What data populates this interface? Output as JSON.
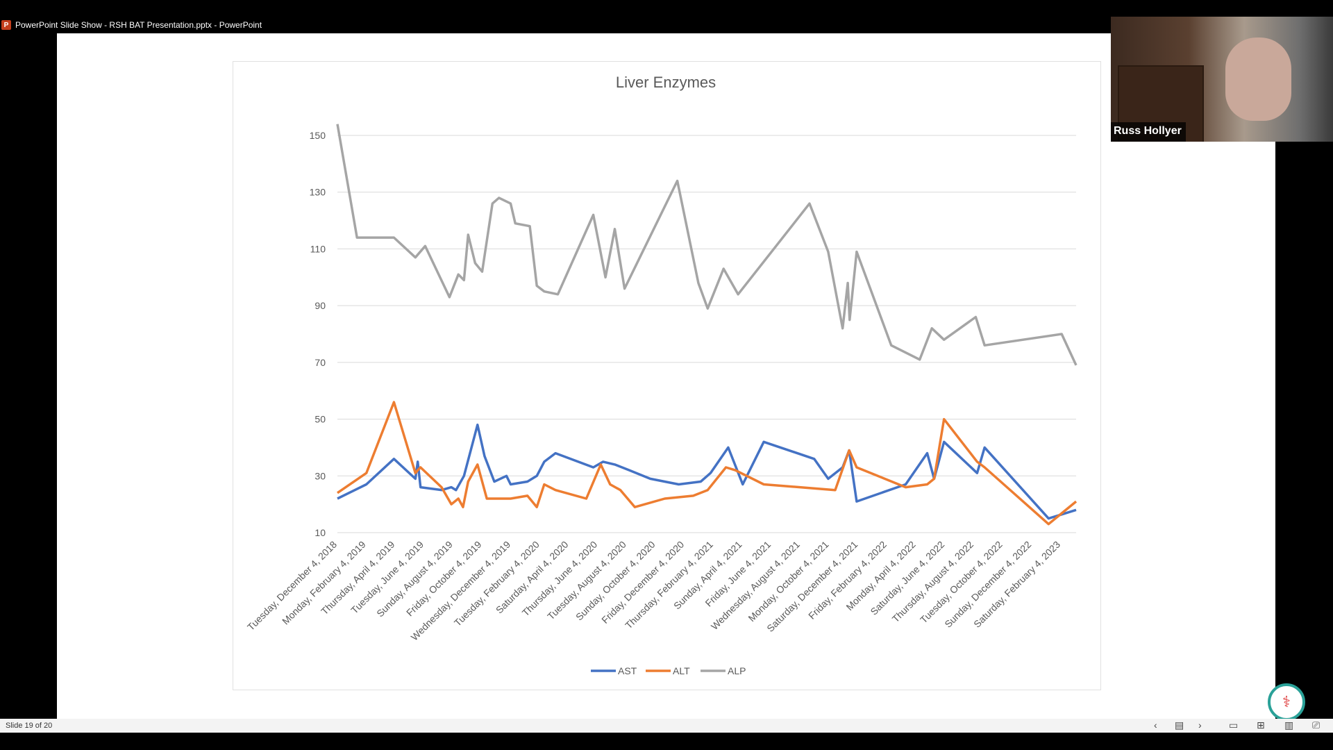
{
  "window": {
    "title": "PowerPoint Slide Show  -  RSH BAT Presentation.pptx - PowerPoint",
    "app_icon": "powerpoint-icon"
  },
  "participant": {
    "name": "Russ Hollyer"
  },
  "status": {
    "slide_label": "Slide 19 of 20"
  },
  "colors": {
    "AST": "#4472C4",
    "ALT": "#ED7D31",
    "ALP": "#A5A5A5",
    "gridline": "#D9D9D9"
  },
  "chart_data": {
    "type": "line",
    "title": "Liver Enzymes",
    "ylim": [
      10,
      150
    ],
    "yticks": [
      10,
      30,
      50,
      70,
      90,
      110,
      130,
      150
    ],
    "grid": true,
    "legend": "bottom",
    "xlim": [
      "2018-12-04",
      "2023-04-04"
    ],
    "x_tick_labels": [
      "Tuesday, December 4, 2018",
      "Monday, February 4, 2019",
      "Thursday, April 4, 2019",
      "Tuesday, June 4, 2019",
      "Sunday, August 4, 2019",
      "Friday, October 4, 2019",
      "Wednesday, December 4, 2019",
      "Tuesday, February 4, 2020",
      "Saturday, April 4, 2020",
      "Thursday, June 4, 2020",
      "Tuesday, August 4, 2020",
      "Sunday, October 4, 2020",
      "Friday, December 4, 2020",
      "Thursday, February 4, 2021",
      "Sunday, April 4, 2021",
      "Friday, June 4, 2021",
      "Wednesday, August 4, 2021",
      "Monday, October 4, 2021",
      "Saturday, December 4, 2021",
      "Friday, February 4, 2022",
      "Monday, April 4, 2022",
      "Saturday, June 4, 2022",
      "Thursday, August 4, 2022",
      "Tuesday, October 4, 2022",
      "Sunday, December 4, 2022",
      "Saturday, February 4, 2023"
    ],
    "series": [
      {
        "name": "AST",
        "points": [
          [
            "2018-12-04",
            22
          ],
          [
            "2019-02-04",
            27
          ],
          [
            "2019-04-04",
            36
          ],
          [
            "2019-05-20",
            29
          ],
          [
            "2019-05-25",
            35
          ],
          [
            "2019-05-31",
            26
          ],
          [
            "2019-07-15",
            25
          ],
          [
            "2019-08-05",
            26
          ],
          [
            "2019-08-15",
            25
          ],
          [
            "2019-09-01",
            30
          ],
          [
            "2019-09-30",
            48
          ],
          [
            "2019-10-15",
            37
          ],
          [
            "2019-11-05",
            28
          ],
          [
            "2019-12-01",
            30
          ],
          [
            "2019-12-10",
            27
          ],
          [
            "2020-01-15",
            28
          ],
          [
            "2020-02-04",
            30
          ],
          [
            "2020-02-20",
            35
          ],
          [
            "2020-03-15",
            38
          ],
          [
            "2020-06-04",
            33
          ],
          [
            "2020-06-25",
            35
          ],
          [
            "2020-07-20",
            34
          ],
          [
            "2020-08-20",
            32
          ],
          [
            "2020-10-04",
            29
          ],
          [
            "2020-12-04",
            27
          ],
          [
            "2021-01-20",
            28
          ],
          [
            "2021-02-10",
            31
          ],
          [
            "2021-03-20",
            40
          ],
          [
            "2021-04-20",
            27
          ],
          [
            "2021-06-04",
            42
          ],
          [
            "2021-09-20",
            36
          ],
          [
            "2021-10-20",
            29
          ],
          [
            "2021-11-20",
            33
          ],
          [
            "2021-12-04",
            39
          ],
          [
            "2021-12-20",
            21
          ],
          [
            "2022-04-04",
            27
          ],
          [
            "2022-05-20",
            38
          ],
          [
            "2022-06-04",
            29
          ],
          [
            "2022-06-25",
            42
          ],
          [
            "2022-09-04",
            31
          ],
          [
            "2022-09-20",
            40
          ],
          [
            "2023-02-04",
            15
          ],
          [
            "2023-04-04",
            18
          ]
        ]
      },
      {
        "name": "ALT",
        "points": [
          [
            "2018-12-04",
            24
          ],
          [
            "2019-02-04",
            31
          ],
          [
            "2019-04-04",
            56
          ],
          [
            "2019-05-20",
            31
          ],
          [
            "2019-05-25",
            32
          ],
          [
            "2019-05-31",
            33
          ],
          [
            "2019-07-15",
            26
          ],
          [
            "2019-08-05",
            20
          ],
          [
            "2019-08-20",
            22
          ],
          [
            "2019-08-30",
            19
          ],
          [
            "2019-09-10",
            28
          ],
          [
            "2019-09-30",
            34
          ],
          [
            "2019-10-20",
            22
          ],
          [
            "2019-12-10",
            22
          ],
          [
            "2020-01-15",
            23
          ],
          [
            "2020-02-04",
            19
          ],
          [
            "2020-02-20",
            27
          ],
          [
            "2020-03-15",
            25
          ],
          [
            "2020-05-20",
            22
          ],
          [
            "2020-06-20",
            34
          ],
          [
            "2020-07-10",
            27
          ],
          [
            "2020-08-01",
            25
          ],
          [
            "2020-09-01",
            19
          ],
          [
            "2020-11-04",
            22
          ],
          [
            "2021-01-04",
            23
          ],
          [
            "2021-02-04",
            25
          ],
          [
            "2021-03-15",
            33
          ],
          [
            "2021-04-04",
            32
          ],
          [
            "2021-06-04",
            27
          ],
          [
            "2021-11-04",
            25
          ],
          [
            "2021-12-04",
            39
          ],
          [
            "2021-12-20",
            33
          ],
          [
            "2022-04-04",
            26
          ],
          [
            "2022-05-20",
            27
          ],
          [
            "2022-06-04",
            29
          ],
          [
            "2022-06-25",
            50
          ],
          [
            "2022-09-04",
            35
          ],
          [
            "2022-09-20",
            33
          ],
          [
            "2023-02-04",
            13
          ],
          [
            "2023-04-04",
            21
          ]
        ]
      },
      {
        "name": "ALP",
        "points": [
          [
            "2018-12-04",
            154
          ],
          [
            "2019-01-15",
            114
          ],
          [
            "2019-04-04",
            114
          ],
          [
            "2019-05-20",
            107
          ],
          [
            "2019-06-10",
            111
          ],
          [
            "2019-08-01",
            93
          ],
          [
            "2019-08-20",
            101
          ],
          [
            "2019-09-01",
            99
          ],
          [
            "2019-09-10",
            115
          ],
          [
            "2019-09-25",
            105
          ],
          [
            "2019-10-10",
            102
          ],
          [
            "2019-11-01",
            126
          ],
          [
            "2019-11-15",
            128
          ],
          [
            "2019-12-10",
            126
          ],
          [
            "2019-12-20",
            119
          ],
          [
            "2020-01-20",
            118
          ],
          [
            "2020-02-04",
            97
          ],
          [
            "2020-02-20",
            95
          ],
          [
            "2020-03-20",
            94
          ],
          [
            "2020-06-04",
            122
          ],
          [
            "2020-06-30",
            100
          ],
          [
            "2020-07-20",
            117
          ],
          [
            "2020-08-10",
            96
          ],
          [
            "2020-12-01",
            134
          ],
          [
            "2021-01-15",
            98
          ],
          [
            "2021-02-04",
            89
          ],
          [
            "2021-03-10",
            103
          ],
          [
            "2021-04-10",
            94
          ],
          [
            "2021-09-10",
            126
          ],
          [
            "2021-10-20",
            109
          ],
          [
            "2021-11-20",
            82
          ],
          [
            "2021-12-01",
            98
          ],
          [
            "2021-12-05",
            85
          ],
          [
            "2021-12-20",
            109
          ],
          [
            "2022-03-04",
            76
          ],
          [
            "2022-05-04",
            71
          ],
          [
            "2022-05-30",
            82
          ],
          [
            "2022-06-25",
            78
          ],
          [
            "2022-09-01",
            86
          ],
          [
            "2022-09-20",
            76
          ],
          [
            "2023-03-04",
            80
          ],
          [
            "2023-04-04",
            69
          ]
        ]
      }
    ]
  }
}
